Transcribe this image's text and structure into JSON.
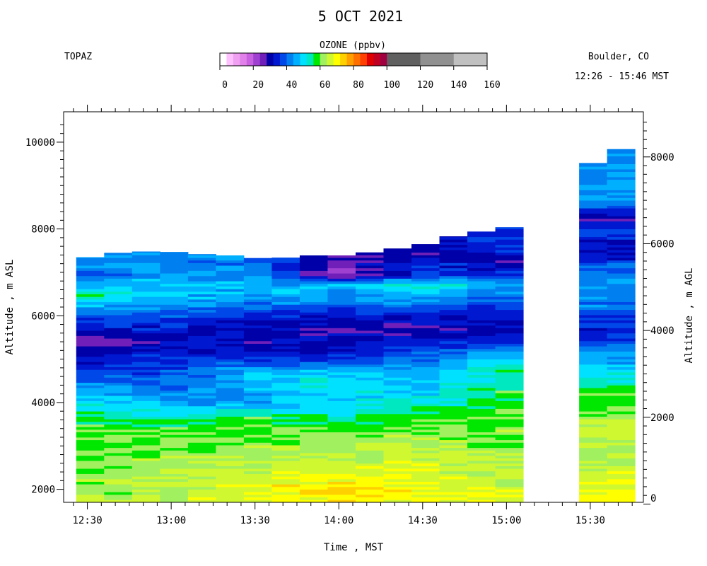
{
  "chart_data": {
    "type": "heatmap",
    "title": "5 OCT 2021",
    "instrument": "TOPAZ",
    "location": "Boulder, CO",
    "time_range": "12:26 - 15:46 MST",
    "colorbar": {
      "title": "OZONE (ppbv)",
      "ticks": [
        0,
        20,
        40,
        60,
        80,
        100,
        120,
        140,
        160
      ],
      "range": [
        0,
        160
      ],
      "segments": [
        {
          "from": 0,
          "to": 4,
          "color": "#ffffff"
        },
        {
          "from": 4,
          "to": 8,
          "color": "#ffc0ff"
        },
        {
          "from": 8,
          "to": 12,
          "color": "#f0a0f0"
        },
        {
          "from": 12,
          "to": 16,
          "color": "#e080e8"
        },
        {
          "from": 16,
          "to": 20,
          "color": "#c860e0"
        },
        {
          "from": 20,
          "to": 24,
          "color": "#a040d0"
        },
        {
          "from": 24,
          "to": 28,
          "color": "#7020b8"
        },
        {
          "from": 28,
          "to": 32,
          "color": "#0000a8"
        },
        {
          "from": 32,
          "to": 36,
          "color": "#0018d0"
        },
        {
          "from": 36,
          "to": 40,
          "color": "#0048e8"
        },
        {
          "from": 40,
          "to": 44,
          "color": "#0080f0"
        },
        {
          "from": 44,
          "to": 48,
          "color": "#00b0ff"
        },
        {
          "from": 48,
          "to": 52,
          "color": "#00e0ff"
        },
        {
          "from": 52,
          "to": 56,
          "color": "#00e8c0"
        },
        {
          "from": 56,
          "to": 60,
          "color": "#00e800"
        },
        {
          "from": 60,
          "to": 64,
          "color": "#a0f060"
        },
        {
          "from": 64,
          "to": 68,
          "color": "#d0f830"
        },
        {
          "from": 68,
          "to": 72,
          "color": "#ffff00"
        },
        {
          "from": 72,
          "to": 76,
          "color": "#ffd000"
        },
        {
          "from": 76,
          "to": 80,
          "color": "#ffa000"
        },
        {
          "from": 80,
          "to": 84,
          "color": "#ff7000"
        },
        {
          "from": 84,
          "to": 88,
          "color": "#ff4000"
        },
        {
          "from": 88,
          "to": 92,
          "color": "#e00000"
        },
        {
          "from": 92,
          "to": 96,
          "color": "#c00020"
        },
        {
          "from": 96,
          "to": 100,
          "color": "#a00040"
        },
        {
          "from": 100,
          "to": 120,
          "color": "#606060"
        },
        {
          "from": 120,
          "to": 140,
          "color": "#909090"
        },
        {
          "from": 140,
          "to": 160,
          "color": "#c0c0c0"
        }
      ]
    },
    "x_axis": {
      "label": "Time , MST",
      "ticks": [
        "12:30",
        "13:00",
        "13:30",
        "14:00",
        "14:30",
        "15:00",
        "15:30"
      ]
    },
    "y_axis_left": {
      "label": "Altitude , m ASL",
      "range": [
        1700,
        10700
      ],
      "ticks": [
        2000,
        4000,
        6000,
        8000,
        10000
      ]
    },
    "y_axis_right": {
      "label": "Altitude , m AGL",
      "ticks": [
        0,
        2000,
        4000,
        6000,
        8000
      ]
    },
    "profiles_note": "Each profile column: [start time, end time, top altitude (m ASL)]",
    "profiles": [
      [
        "12:26",
        "12:36",
        7350
      ],
      [
        "12:36",
        "12:46",
        7450
      ],
      [
        "12:46",
        "12:56",
        7480
      ],
      [
        "12:56",
        "13:06",
        7470
      ],
      [
        "13:06",
        "13:16",
        7420
      ],
      [
        "13:16",
        "13:26",
        7390
      ],
      [
        "13:26",
        "13:36",
        7330
      ],
      [
        "13:36",
        "13:46",
        7340
      ],
      [
        "13:46",
        "13:56",
        7390
      ],
      [
        "13:56",
        "14:06",
        7390
      ],
      [
        "14:06",
        "14:16",
        7460
      ],
      [
        "14:16",
        "14:26",
        7550
      ],
      [
        "14:26",
        "14:36",
        7650
      ],
      [
        "14:36",
        "14:46",
        7830
      ],
      [
        "14:46",
        "14:56",
        7940
      ],
      [
        "14:56",
        "15:06",
        8040
      ],
      [
        "15:26",
        "15:36",
        9520
      ],
      [
        "15:36",
        "15:46",
        9840
      ]
    ],
    "ozone_profiles": [
      {
        "time": "12:30",
        "levels": [
          1700,
          1950,
          2200,
          2450,
          2700,
          2950,
          3200,
          3450,
          3700,
          3950,
          4200,
          4450,
          4700,
          4950,
          5200,
          5450,
          5700,
          5950,
          6200,
          6450,
          6700,
          6950,
          7200
        ],
        "ozone": [
          64,
          61,
          63,
          58,
          61,
          59,
          60,
          59,
          56,
          52,
          46,
          43,
          37,
          33,
          31,
          23,
          33,
          38,
          44,
          58,
          48,
          38,
          45
        ]
      },
      {
        "time": "13:00",
        "levels": [
          1700,
          1950,
          2200,
          2450,
          2700,
          2950,
          3200,
          3450,
          3700,
          3950,
          4200,
          4450,
          4700,
          4950,
          5200,
          5450,
          5700,
          5950,
          6200,
          6450,
          6700,
          6950,
          7200
        ],
        "ozone": [
          66,
          63,
          65,
          63,
          62,
          60,
          60,
          59,
          51,
          46,
          43,
          40,
          38,
          36,
          34,
          32,
          34,
          37,
          43,
          47,
          48,
          45,
          42
        ]
      },
      {
        "time": "13:30",
        "levels": [
          1700,
          1950,
          2200,
          2450,
          2700,
          2950,
          3200,
          3450,
          3700,
          3950,
          4200,
          4450,
          4700,
          4950,
          5200,
          5450,
          5700,
          5950,
          6200,
          6450,
          6700,
          6950,
          7200
        ],
        "ozone": [
          66,
          69,
          67,
          65,
          64,
          62,
          60,
          59,
          58,
          46,
          45,
          47,
          48,
          37,
          32,
          30,
          31,
          33,
          40,
          45,
          46,
          43,
          41
        ]
      },
      {
        "time": "14:00",
        "levels": [
          1700,
          1950,
          2200,
          2450,
          2700,
          2950,
          3200,
          3450,
          3700,
          3950,
          4200,
          4450,
          4700,
          4950,
          5200,
          5450,
          5700,
          5950,
          6200,
          6450,
          6700,
          6950,
          7200
        ],
        "ozone": [
          70,
          73,
          71,
          67,
          65,
          62,
          60,
          59,
          53,
          48,
          50,
          52,
          47,
          37,
          31,
          30,
          30,
          32,
          39,
          44,
          47,
          24,
          27
        ]
      },
      {
        "time": "14:30",
        "levels": [
          1700,
          1950,
          2200,
          2450,
          2700,
          2950,
          3200,
          3450,
          3700,
          3950,
          4200,
          4450,
          4700,
          4950,
          5200,
          5450,
          5700,
          5950,
          6200,
          6450,
          6700,
          6950,
          7200,
          7450
        ],
        "ozone": [
          68,
          69,
          67,
          68,
          66,
          64,
          63,
          60,
          58,
          53,
          49,
          47,
          45,
          42,
          39,
          33,
          28,
          32,
          40,
          46,
          54,
          36,
          36,
          28
        ]
      },
      {
        "time": "15:00",
        "levels": [
          1700,
          1950,
          2200,
          2450,
          2700,
          2950,
          3200,
          3450,
          3700,
          3950,
          4200,
          4450,
          4700,
          4950,
          5200,
          5450,
          5700,
          5950,
          6200,
          6450,
          6700,
          6950,
          7200,
          7450,
          7700
        ],
        "ozone": [
          69,
          67,
          64,
          62,
          64,
          62,
          60,
          62,
          61,
          58,
          58,
          56,
          56,
          51,
          42,
          34,
          31,
          32,
          37,
          40,
          45,
          35,
          30,
          33,
          37
        ]
      },
      {
        "time": "15:30",
        "levels": [
          1700,
          1950,
          2200,
          2450,
          2700,
          2950,
          3200,
          3450,
          3700,
          3950,
          4200,
          4450,
          4700,
          4950,
          5200,
          5450,
          5700,
          5950,
          6200,
          6450,
          6700,
          6950,
          7200,
          7450,
          7700,
          7950,
          8200,
          8450,
          8700,
          8950,
          9200
        ],
        "ozone": [
          66,
          69,
          68,
          66,
          64,
          62,
          64,
          66,
          61,
          58,
          57,
          55,
          50,
          45,
          43,
          36,
          34,
          36,
          41,
          42,
          43,
          42,
          37,
          32,
          31,
          38,
          28,
          36,
          45,
          46,
          43
        ]
      }
    ]
  }
}
